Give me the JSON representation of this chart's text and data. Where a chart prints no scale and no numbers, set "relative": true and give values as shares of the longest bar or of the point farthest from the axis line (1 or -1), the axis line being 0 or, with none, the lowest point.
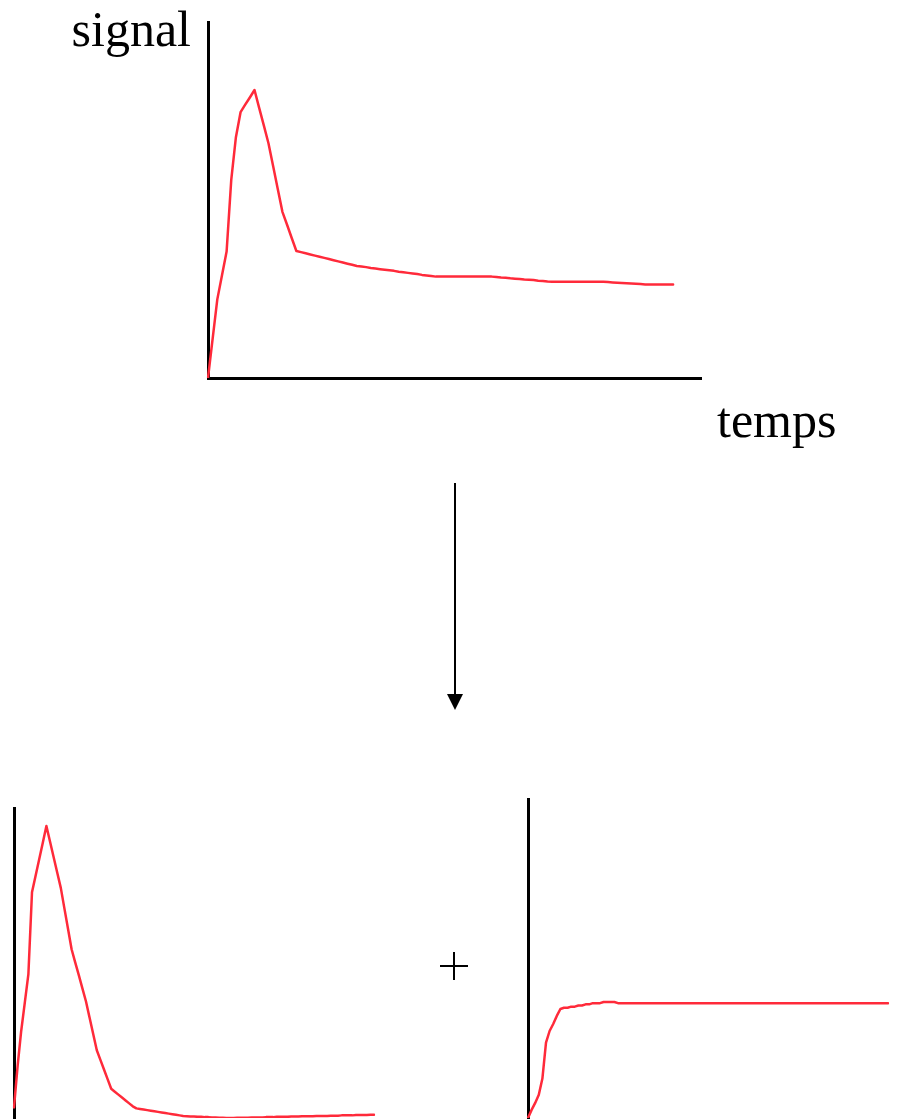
{
  "chart_data": [
    {
      "type": "line",
      "ylabel": "signal",
      "xlabel": "temps",
      "relative": true,
      "color": "#ff2a3a",
      "categories": [
        null,
        null,
        null,
        null,
        null,
        null,
        null,
        null,
        null,
        null,
        null,
        null,
        null,
        null,
        null,
        null,
        null,
        null,
        null,
        null,
        null,
        null,
        null,
        null,
        null,
        null,
        null,
        null,
        null,
        null,
        null,
        null,
        null,
        null,
        null,
        null,
        null,
        null,
        null,
        null,
        null,
        null,
        null,
        null,
        null,
        null,
        null,
        null,
        null,
        null,
        null,
        null,
        null,
        null,
        null,
        null,
        null,
        null,
        null,
        null,
        null,
        null,
        null,
        null,
        null,
        null,
        null,
        null,
        null,
        null,
        null,
        null,
        null,
        null,
        null,
        null,
        null,
        null,
        null,
        null,
        null,
        null,
        null,
        null,
        null,
        null,
        null,
        null,
        null,
        null,
        null,
        null,
        null,
        null,
        null,
        null,
        null,
        null,
        null,
        null,
        null,
        null,
        null,
        null,
        null,
        null,
        null
      ],
      "values": [
        0,
        0.137,
        0.273,
        0.356,
        0.439,
        0.688,
        0.836,
        0.923,
        0.949,
        0.974,
        1,
        0.938,
        0.877,
        0.815,
        0.736,
        0.656,
        0.577,
        0.532,
        0.486,
        0.441,
        0.437,
        0.433,
        0.429,
        0.425,
        0.421,
        0.417,
        0.413,
        0.409,
        0.405,
        0.401,
        0.397,
        0.393,
        0.389,
        0.387,
        0.385,
        0.382,
        0.38,
        0.378,
        0.376,
        0.374,
        0.372,
        0.369,
        0.367,
        0.365,
        0.363,
        0.361,
        0.358,
        0.356,
        0.354,
        0.352,
        0.352,
        0.352,
        0.352,
        0.352,
        0.352,
        0.352,
        0.352,
        0.352,
        0.352,
        0.352,
        0.352,
        0.352,
        0.351,
        0.349,
        0.348,
        0.346,
        0.345,
        0.344,
        0.342,
        0.341,
        0.34,
        0.338,
        0.337,
        0.335,
        0.334,
        0.334,
        0.334,
        0.334,
        0.334,
        0.334,
        0.334,
        0.334,
        0.334,
        0.334,
        0.334,
        0.334,
        0.333,
        0.332,
        0.331,
        0.33,
        0.329,
        0.328,
        0.327,
        0.326,
        0.325,
        0.325,
        0.325,
        0.325,
        0.325,
        0.325,
        0.325,
        null,
        null,
        null,
        null,
        null,
        null
      ]
    },
    {
      "type": "line",
      "relative": true,
      "color": "#ff2a3a",
      "categories": [
        null,
        null,
        null,
        null,
        null,
        null,
        null,
        null,
        null,
        null,
        null,
        null,
        null,
        null,
        null,
        null,
        null,
        null,
        null,
        null,
        null,
        null,
        null,
        null,
        null,
        null,
        null,
        null,
        null,
        null,
        null,
        null,
        null,
        null,
        null,
        null,
        null,
        null,
        null,
        null,
        null,
        null,
        null,
        null,
        null,
        null,
        null,
        null,
        null,
        null,
        null,
        null,
        null,
        null,
        null,
        null,
        null,
        null,
        null,
        null,
        null,
        null,
        null,
        null,
        null,
        null,
        null,
        null,
        null,
        null,
        null,
        null,
        null,
        null,
        null,
        null,
        null,
        null,
        null,
        null,
        null,
        null,
        null,
        null,
        null,
        null,
        null,
        null,
        null,
        null,
        null,
        null,
        null,
        null,
        null,
        null,
        null,
        null,
        null,
        null,
        null
      ],
      "values": [
        0.036,
        0.178,
        0.298,
        0.395,
        0.493,
        0.773,
        0.83,
        0.886,
        0.943,
        1,
        0.947,
        0.894,
        0.841,
        0.788,
        0.718,
        0.648,
        0.578,
        0.533,
        0.489,
        0.444,
        0.399,
        0.343,
        0.288,
        0.232,
        0.199,
        0.166,
        0.133,
        0.1,
        0.09,
        0.08,
        0.07,
        0.06,
        0.05,
        0.04,
        0.033,
        0.031,
        0.029,
        0.027,
        0.025,
        0.023,
        0.021,
        0.019,
        0.017,
        0.015,
        0.013,
        0.011,
        0.009,
        0.007,
        0.006,
        0.005,
        0.005,
        0.004,
        0.004,
        0.003,
        0.003,
        0.002,
        0.002,
        0.001,
        0.001,
        0,
        0,
        0,
        0.001,
        0.001,
        0.001,
        0.001,
        0.002,
        0.002,
        0.002,
        0.002,
        0.003,
        0.003,
        0.003,
        0.004,
        0.004,
        0.004,
        0.004,
        0.005,
        0.005,
        0.005,
        0.006,
        0.006,
        0.006,
        0.006,
        0.007,
        0.007,
        0.007,
        0.007,
        0.008,
        0.008,
        0.008,
        0.009,
        0.009,
        0.009,
        0.009,
        0.01,
        0.01,
        0.01,
        0.01,
        0.011,
        0.011
      ]
    },
    {
      "type": "line",
      "relative": true,
      "color": "#ff2a3a",
      "categories": [
        null,
        null,
        null,
        null,
        null,
        null,
        null,
        null,
        null,
        null,
        null,
        null,
        null,
        null,
        null,
        null,
        null,
        null,
        null,
        null,
        null,
        null,
        null,
        null,
        null,
        null,
        null,
        null,
        null,
        null,
        null,
        null,
        null,
        null,
        null,
        null,
        null,
        null,
        null,
        null,
        null,
        null,
        null,
        null,
        null,
        null,
        null,
        null,
        null,
        null,
        null,
        null,
        null,
        null,
        null,
        null,
        null,
        null,
        null,
        null,
        null,
        null,
        null,
        null,
        null,
        null,
        null,
        null,
        null,
        null,
        null,
        null,
        null,
        null,
        null,
        null,
        null,
        null,
        null,
        null,
        null,
        null,
        null,
        null,
        null,
        null,
        null,
        null,
        null,
        null,
        null,
        null,
        null,
        null,
        null,
        null,
        null,
        null,
        null,
        null,
        null
      ],
      "values": [
        0,
        0.07,
        0.13,
        0.2,
        0.34,
        0.65,
        0.75,
        0.81,
        0.88,
        0.94,
        0.95,
        0.95,
        0.96,
        0.96,
        0.97,
        0.97,
        0.98,
        0.98,
        0.99,
        0.99,
        0.99,
        1,
        1,
        1,
        1,
        0.99,
        0.99,
        0.99,
        0.99,
        0.99,
        0.99,
        0.99,
        0.99,
        0.99,
        0.99,
        0.99,
        0.99,
        0.99,
        0.99,
        0.99,
        0.99,
        0.99,
        0.99,
        0.99,
        0.99,
        0.99,
        0.99,
        0.99,
        0.99,
        0.99,
        0.99,
        0.99,
        0.99,
        0.99,
        0.99,
        0.99,
        0.99,
        0.99,
        0.99,
        0.99,
        0.99,
        0.99,
        0.99,
        0.99,
        0.99,
        0.99,
        0.99,
        0.99,
        0.99,
        0.99,
        0.99,
        0.99,
        0.99,
        0.99,
        0.99,
        0.99,
        0.99,
        0.99,
        0.99,
        0.99,
        0.99,
        0.99,
        0.99,
        0.99,
        0.99,
        0.99,
        0.99,
        0.99,
        0.99,
        0.99,
        0.99,
        0.99,
        0.99,
        0.99,
        0.99,
        0.99,
        0.99,
        0.99,
        0.99,
        0.99,
        0.99
      ]
    }
  ]
}
